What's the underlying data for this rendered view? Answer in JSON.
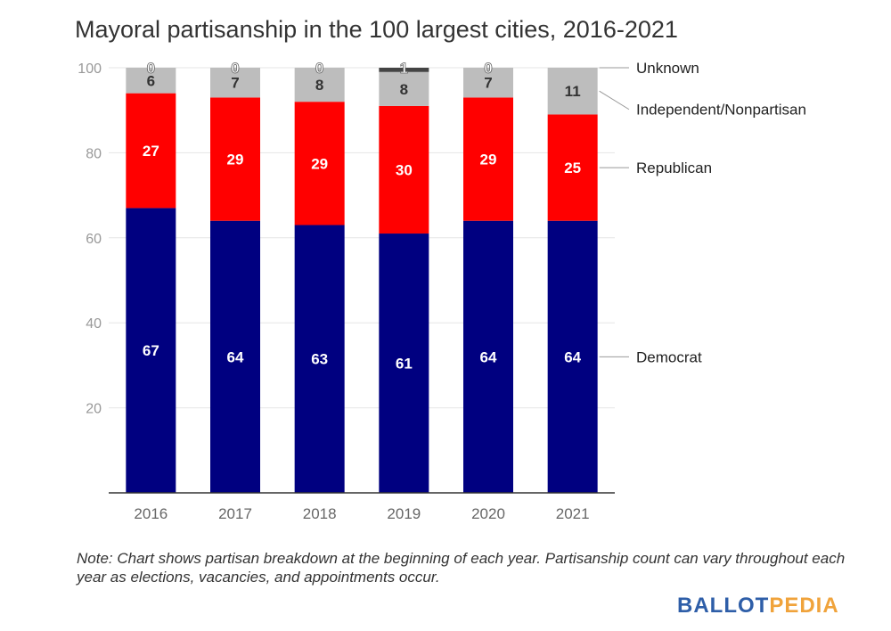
{
  "title": "Mayoral partisanship in the 100 largest cities, 2016-2021",
  "note": "Note: Chart shows partisan breakdown at the beginning of each year. Partisanship count can vary throughout each year as elections, vacancies, and appointments occur.",
  "logo": {
    "part1": "BALLOT",
    "part2": "PEDIA"
  },
  "colors": {
    "brand_blue": "#2e5ea8",
    "brand_orange": "#f0a33b"
  },
  "chart_data": {
    "type": "bar",
    "stacked": true,
    "categories": [
      "2016",
      "2017",
      "2018",
      "2019",
      "2020",
      "2021"
    ],
    "series": [
      {
        "name": "Democrat",
        "values": [
          67,
          64,
          63,
          61,
          64,
          64
        ],
        "color": "#000080",
        "label_color": "#ffffff"
      },
      {
        "name": "Republican",
        "values": [
          27,
          29,
          29,
          30,
          29,
          25
        ],
        "color": "#ff0000",
        "label_color": "#ffffff"
      },
      {
        "name": "Independent/Nonpartisan",
        "values": [
          6,
          7,
          8,
          8,
          7,
          11
        ],
        "color": "#bdbdbd",
        "label_color": "#333333"
      },
      {
        "name": "Unknown",
        "values": [
          0,
          0,
          0,
          1,
          0,
          0
        ],
        "color": "#444444",
        "label_color": "#ffffff"
      }
    ],
    "data_labels": [
      [
        "67",
        "64",
        "63",
        "61",
        "64",
        "64"
      ],
      [
        "27",
        "29",
        "29",
        "30",
        "29",
        "25"
      ],
      [
        "6",
        "7",
        "8",
        "8",
        "7",
        "11"
      ],
      [
        "0",
        "0",
        "0",
        "1",
        "0",
        ""
      ]
    ],
    "yticks": [
      "20",
      "40",
      "60",
      "80",
      "100"
    ],
    "ylim": [
      0,
      100
    ],
    "grid": true,
    "legend": "right, labels beside 2021 bar"
  }
}
